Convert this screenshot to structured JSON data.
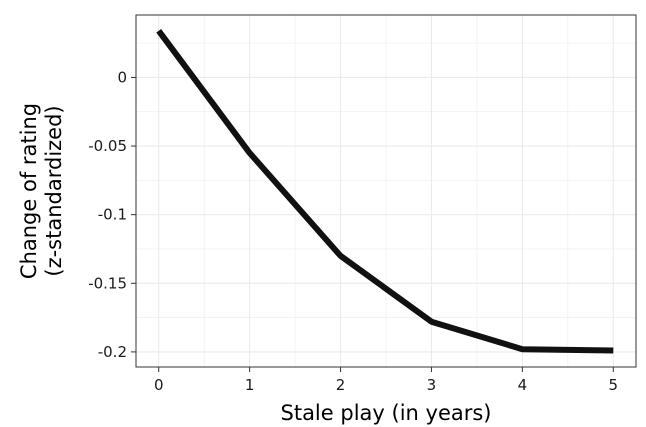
{
  "chart_data": {
    "type": "line",
    "title": "",
    "xlabel": "Stale play (in years)",
    "ylabel_lines": [
      "Change of rating",
      "(z-standardized)"
    ],
    "x": [
      0,
      1,
      2,
      3,
      4,
      5
    ],
    "series": [
      {
        "values": [
          0.034,
          -0.055,
          -0.13,
          -0.178,
          -0.198,
          -0.199
        ]
      }
    ],
    "xticks": [
      0,
      1,
      2,
      3,
      4,
      5
    ],
    "xtick_labels": [
      "0",
      "1",
      "2",
      "3",
      "4",
      "5"
    ],
    "yticks": [
      0,
      -0.05,
      -0.1,
      -0.15,
      -0.2
    ],
    "ytick_labels": [
      "0",
      "-0.05",
      "-0.1",
      "-0.15",
      "-0.2"
    ],
    "xlim": [
      -0.25,
      5.25
    ],
    "ylim": [
      -0.211,
      0.0455
    ],
    "grid": true,
    "line_color": "#111111",
    "grid_color": "#ebebeb"
  }
}
